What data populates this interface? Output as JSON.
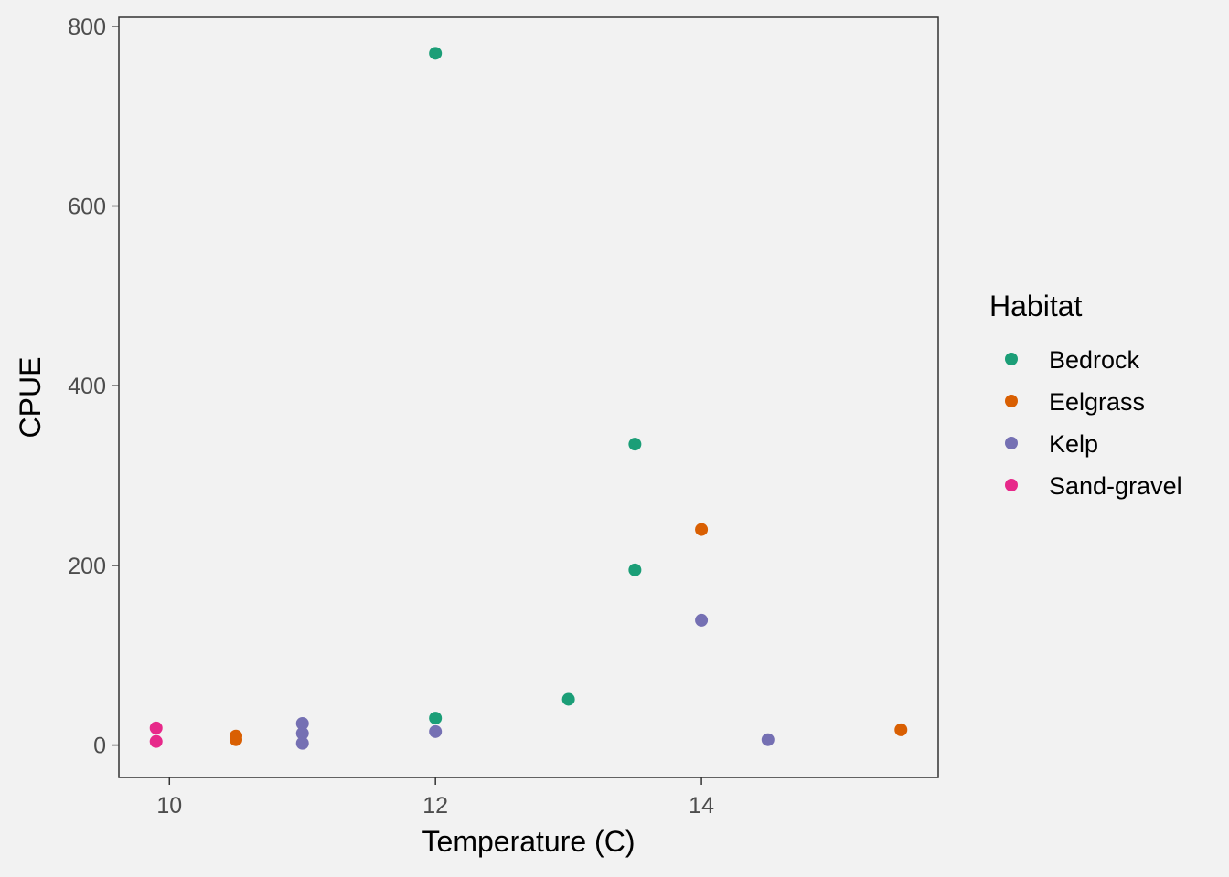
{
  "chart_data": {
    "type": "scatter",
    "title": "",
    "xlabel": "Temperature (C)",
    "ylabel": "CPUE",
    "xlim": [
      9.62,
      15.78
    ],
    "ylim": [
      -36,
      810
    ],
    "x_ticks": [
      10,
      12,
      14
    ],
    "y_ticks": [
      0,
      200,
      400,
      600,
      800
    ],
    "grid": false,
    "background": "#f2f2f2",
    "legend": {
      "title": "Habitat",
      "position": "right"
    },
    "series": [
      {
        "name": "Bedrock",
        "color": "#1b9e77",
        "points": [
          [
            12,
            770
          ],
          [
            13.5,
            335
          ],
          [
            13.5,
            195
          ],
          [
            12,
            30
          ],
          [
            13,
            51
          ]
        ]
      },
      {
        "name": "Eelgrass",
        "color": "#d95f02",
        "points": [
          [
            14,
            240
          ],
          [
            10.5,
            10
          ],
          [
            10.5,
            6
          ],
          [
            15.5,
            17
          ]
        ]
      },
      {
        "name": "Kelp",
        "color": "#7570b3",
        "points": [
          [
            14,
            139
          ],
          [
            11,
            24
          ],
          [
            11,
            13
          ],
          [
            11,
            2
          ],
          [
            12,
            15
          ],
          [
            14.5,
            6
          ]
        ]
      },
      {
        "name": "Sand-gravel",
        "color": "#e7298a",
        "points": [
          [
            9.9,
            19
          ],
          [
            9.9,
            4
          ]
        ]
      }
    ]
  }
}
